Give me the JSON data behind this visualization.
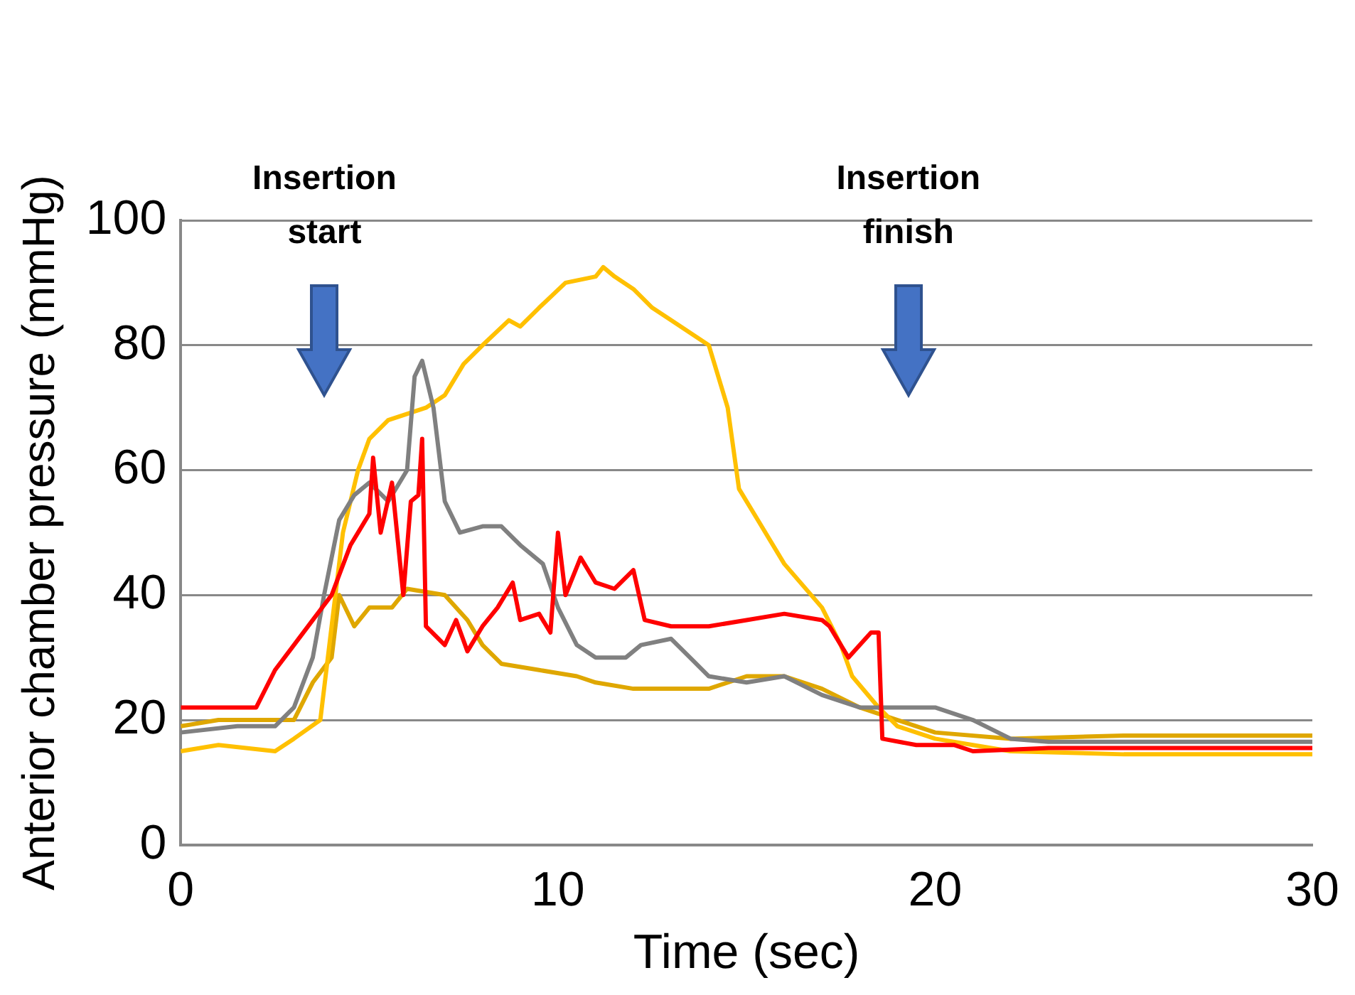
{
  "chart_data": {
    "type": "line",
    "xlabel": "Time (sec)",
    "ylabel": "Anterior chamber pressure (mmHg)",
    "xlim": [
      0,
      30
    ],
    "xticks": [
      0,
      10,
      20,
      30
    ],
    "ylim": [
      0,
      100
    ],
    "yticks": [
      0,
      20,
      40,
      60,
      80,
      100
    ],
    "grid": "y",
    "marker": "none",
    "line_style": "solid",
    "annotations": [
      "Insertion start",
      "Insertion finish"
    ],
    "series": [
      {
        "color": "#ff0000",
        "x": [
          0,
          1,
          2,
          2.5,
          3,
          3.5,
          4,
          4.5,
          5,
          5.1,
          5.3,
          5.6,
          5.9,
          6.1,
          6.3,
          6.4,
          6.5,
          7,
          7.3,
          7.6,
          8,
          8.4,
          8.8,
          9,
          9.5,
          9.8,
          10,
          10.2,
          10.6,
          11,
          11.5,
          12,
          12.3,
          13,
          14,
          15,
          16,
          17,
          17.2,
          17.7,
          18.3,
          18.5,
          18.6,
          19.5,
          20.5,
          21,
          23,
          25,
          27,
          30
        ],
        "values": [
          22,
          22,
          22,
          28,
          32,
          36,
          40,
          48,
          53,
          62,
          50,
          58,
          40,
          55,
          56,
          65,
          35,
          32,
          36,
          31,
          35,
          38,
          42,
          36,
          37,
          34,
          50,
          40,
          46,
          42,
          41,
          44,
          36,
          35,
          35,
          36,
          37,
          36,
          35,
          30,
          34,
          34,
          17,
          16,
          16,
          15,
          15.5,
          15.5,
          15.5,
          15.5
        ]
      },
      {
        "color": "#808080",
        "x": [
          0,
          1.5,
          2.5,
          3,
          3.5,
          3.8,
          4.2,
          4.6,
          5,
          5.5,
          6,
          6.2,
          6.4,
          6.7,
          7,
          7.4,
          8,
          8.5,
          9,
          9.6,
          10,
          10.5,
          11,
          11.8,
          12.2,
          13,
          13.5,
          14,
          15,
          16,
          17,
          18,
          19,
          20,
          21,
          22,
          23,
          25,
          27,
          30
        ],
        "values": [
          18,
          19,
          19,
          22,
          30,
          40,
          52,
          56,
          58,
          55,
          60,
          75,
          77.5,
          70,
          55,
          50,
          51,
          51,
          48,
          45,
          38,
          32,
          30,
          30,
          32,
          33,
          30,
          27,
          26,
          27,
          24,
          22,
          22,
          22,
          20,
          17,
          16.5,
          16.5,
          16.5,
          16.5
        ]
      },
      {
        "color": "#ffc000",
        "x": [
          0,
          1,
          2.5,
          3,
          3.7,
          4,
          4.3,
          4.7,
          5,
          5.5,
          6.5,
          7,
          7.5,
          8,
          8.7,
          9,
          9.5,
          10.2,
          11,
          11.2,
          11.5,
          12,
          12.5,
          13,
          14,
          14.5,
          14.8,
          15.3,
          16,
          17,
          17.5,
          17.8,
          18.5,
          19,
          20,
          21,
          22,
          25,
          28,
          30
        ],
        "values": [
          15,
          16,
          15,
          17,
          20,
          35,
          50,
          60,
          65,
          68,
          70,
          72,
          77,
          80,
          84,
          83,
          86,
          90,
          91,
          92.5,
          91,
          89,
          86,
          84,
          80,
          70,
          57,
          52,
          45,
          38,
          32,
          27,
          22,
          19,
          17,
          16,
          15,
          14.5,
          14.5,
          14.5
        ]
      },
      {
        "color": "#dfa700",
        "x": [
          0,
          1,
          3,
          3.5,
          4,
          4.2,
          4.6,
          5,
          5.6,
          6,
          7,
          7.6,
          8,
          8.5,
          9.5,
          10.5,
          11,
          12,
          14,
          15,
          16,
          17,
          18,
          19,
          20,
          22,
          25,
          30
        ],
        "values": [
          19,
          20,
          20,
          26,
          30,
          40,
          35,
          38,
          38,
          41,
          40,
          36,
          32,
          29,
          28,
          27,
          26,
          25,
          25,
          27,
          27,
          25,
          22,
          20,
          18,
          17,
          17.5,
          17.5
        ]
      }
    ]
  }
}
